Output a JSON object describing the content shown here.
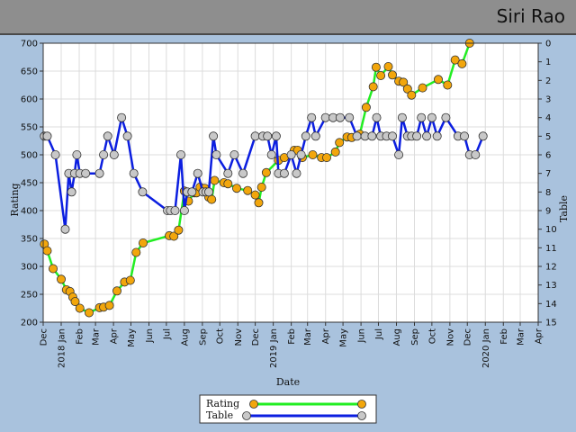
{
  "header": {
    "player_name": "Siri Rao"
  },
  "chart_data": {
    "type": "line",
    "xlabel": "Date",
    "ylabel": "Rating",
    "y2label": "Table",
    "ylim": [
      200,
      700
    ],
    "y2lim": [
      0,
      15
    ],
    "yticks": [
      200,
      250,
      300,
      350,
      400,
      450,
      500,
      550,
      600,
      650,
      700
    ],
    "y2ticks": [
      0,
      1,
      2,
      3,
      4,
      5,
      6,
      7,
      8,
      9,
      10,
      11,
      12,
      13,
      14,
      15
    ],
    "xlim": [
      "2017-12-01",
      "2020-04-01"
    ],
    "xticks": [
      {
        "date": "2017-12-01",
        "label": "Dec"
      },
      {
        "date": "2018-01-01",
        "label": "2018 Jan"
      },
      {
        "date": "2018-02-01",
        "label": "Feb"
      },
      {
        "date": "2018-03-01",
        "label": "Mar"
      },
      {
        "date": "2018-04-01",
        "label": "Apr"
      },
      {
        "date": "2018-05-01",
        "label": "May"
      },
      {
        "date": "2018-06-01",
        "label": "Jun"
      },
      {
        "date": "2018-07-01",
        "label": "Jul"
      },
      {
        "date": "2018-08-01",
        "label": "Aug"
      },
      {
        "date": "2018-09-01",
        "label": "Sep"
      },
      {
        "date": "2018-10-01",
        "label": "Oct"
      },
      {
        "date": "2018-11-01",
        "label": "Nov"
      },
      {
        "date": "2018-12-01",
        "label": "Dec"
      },
      {
        "date": "2019-01-01",
        "label": "2019 Jan"
      },
      {
        "date": "2019-02-01",
        "label": "Feb"
      },
      {
        "date": "2019-03-01",
        "label": "Mar"
      },
      {
        "date": "2019-04-01",
        "label": "Apr"
      },
      {
        "date": "2019-05-01",
        "label": "May"
      },
      {
        "date": "2019-06-01",
        "label": "Jun"
      },
      {
        "date": "2019-07-01",
        "label": "Jul"
      },
      {
        "date": "2019-08-01",
        "label": "Aug"
      },
      {
        "date": "2019-09-01",
        "label": "Sep"
      },
      {
        "date": "2019-10-01",
        "label": "Oct"
      },
      {
        "date": "2019-11-01",
        "label": "Nov"
      },
      {
        "date": "2019-12-01",
        "label": "Dec"
      },
      {
        "date": "2020-01-01",
        "label": "2020 Jan"
      },
      {
        "date": "2020-02-01",
        "label": "Feb"
      },
      {
        "date": "2020-03-01",
        "label": "Mar"
      },
      {
        "date": "2020-04-01",
        "label": "Apr"
      }
    ],
    "grid": true,
    "legend_position": "bottom-center",
    "series": [
      {
        "name": "Rating",
        "axis": "left",
        "line_color": "#22ee22",
        "marker_color": "#f2a60c",
        "points": [
          [
            "2017-12-03",
            340
          ],
          [
            "2017-12-08",
            328
          ],
          [
            "2017-12-18",
            296
          ],
          [
            "2018-01-01",
            277
          ],
          [
            "2018-01-10",
            258
          ],
          [
            "2018-01-16",
            255
          ],
          [
            "2018-01-21",
            245
          ],
          [
            "2018-01-25",
            237
          ],
          [
            "2018-02-02",
            225
          ],
          [
            "2018-02-18",
            217
          ],
          [
            "2018-03-08",
            226
          ],
          [
            "2018-03-15",
            227
          ],
          [
            "2018-03-25",
            230
          ],
          [
            "2018-04-07",
            256
          ],
          [
            "2018-04-20",
            272
          ],
          [
            "2018-04-30",
            275
          ],
          [
            "2018-05-10",
            325
          ],
          [
            "2018-05-22",
            342
          ],
          [
            "2018-07-06",
            355
          ],
          [
            "2018-07-14",
            354
          ],
          [
            "2018-07-22",
            365
          ],
          [
            "2018-08-01",
            435
          ],
          [
            "2018-08-08",
            417
          ],
          [
            "2018-08-18",
            432
          ],
          [
            "2018-08-22",
            432
          ],
          [
            "2018-08-28",
            442
          ],
          [
            "2018-09-05",
            440
          ],
          [
            "2018-09-12",
            424
          ],
          [
            "2018-09-17",
            420
          ],
          [
            "2018-09-22",
            454
          ],
          [
            "2018-10-08",
            450
          ],
          [
            "2018-10-15",
            448
          ],
          [
            "2018-10-30",
            440
          ],
          [
            "2018-11-18",
            436
          ],
          [
            "2018-12-01",
            428
          ],
          [
            "2018-12-07",
            414
          ],
          [
            "2018-12-12",
            442
          ],
          [
            "2018-12-20",
            468
          ],
          [
            "2019-01-10",
            490
          ],
          [
            "2019-01-20",
            495
          ],
          [
            "2019-02-06",
            508
          ],
          [
            "2019-02-12",
            508
          ],
          [
            "2019-02-20",
            495
          ],
          [
            "2019-03-10",
            500
          ],
          [
            "2019-03-25",
            495
          ],
          [
            "2019-04-03",
            495
          ],
          [
            "2019-04-18",
            505
          ],
          [
            "2019-04-25",
            522
          ],
          [
            "2019-05-08",
            532
          ],
          [
            "2019-05-16",
            531
          ],
          [
            "2019-05-30",
            537
          ],
          [
            "2019-06-10",
            585
          ],
          [
            "2019-06-22",
            622
          ],
          [
            "2019-06-27",
            657
          ],
          [
            "2019-07-05",
            642
          ],
          [
            "2019-07-18",
            658
          ],
          [
            "2019-07-25",
            643
          ],
          [
            "2019-08-05",
            632
          ],
          [
            "2019-08-13",
            630
          ],
          [
            "2019-08-20",
            618
          ],
          [
            "2019-08-27",
            607
          ],
          [
            "2019-09-15",
            620
          ],
          [
            "2019-10-12",
            635
          ],
          [
            "2019-10-28",
            625
          ],
          [
            "2019-11-10",
            670
          ],
          [
            "2019-11-22",
            663
          ],
          [
            "2019-12-05",
            700
          ]
        ]
      },
      {
        "name": "Table",
        "axis": "right",
        "line_color": "#0b1ee0",
        "marker_color": "#c8c8c8",
        "points": [
          [
            "2017-12-03",
            5
          ],
          [
            "2017-12-08",
            5
          ],
          [
            "2017-12-22",
            6
          ],
          [
            "2018-01-08",
            10
          ],
          [
            "2018-01-14",
            7
          ],
          [
            "2018-01-19",
            8
          ],
          [
            "2018-01-24",
            7
          ],
          [
            "2018-01-28",
            6
          ],
          [
            "2018-02-02",
            7
          ],
          [
            "2018-02-12",
            7
          ],
          [
            "2018-03-08",
            7
          ],
          [
            "2018-03-15",
            6
          ],
          [
            "2018-03-22",
            5
          ],
          [
            "2018-04-02",
            6
          ],
          [
            "2018-04-15",
            4
          ],
          [
            "2018-04-25",
            5
          ],
          [
            "2018-05-06",
            7
          ],
          [
            "2018-05-21",
            8
          ],
          [
            "2018-07-03",
            9
          ],
          [
            "2018-07-08",
            9
          ],
          [
            "2018-07-16",
            9
          ],
          [
            "2018-07-26",
            6
          ],
          [
            "2018-08-01",
            9
          ],
          [
            "2018-08-06",
            8
          ],
          [
            "2018-08-14",
            8
          ],
          [
            "2018-08-24",
            7
          ],
          [
            "2018-09-02",
            8
          ],
          [
            "2018-09-07",
            8
          ],
          [
            "2018-09-12",
            8
          ],
          [
            "2018-09-20",
            5
          ],
          [
            "2018-09-25",
            6
          ],
          [
            "2018-10-15",
            7
          ],
          [
            "2018-10-26",
            6
          ],
          [
            "2018-11-10",
            7
          ],
          [
            "2018-12-01",
            5
          ],
          [
            "2018-12-14",
            5
          ],
          [
            "2018-12-22",
            5
          ],
          [
            "2018-12-29",
            6
          ],
          [
            "2019-01-06",
            5
          ],
          [
            "2019-01-10",
            7
          ],
          [
            "2019-01-20",
            7
          ],
          [
            "2019-02-01",
            6
          ],
          [
            "2019-02-10",
            7
          ],
          [
            "2019-02-18",
            6
          ],
          [
            "2019-02-26",
            5
          ],
          [
            "2019-03-08",
            4
          ],
          [
            "2019-03-15",
            5
          ],
          [
            "2019-04-01",
            4
          ],
          [
            "2019-04-14",
            4
          ],
          [
            "2019-04-26",
            4
          ],
          [
            "2019-05-12",
            4
          ],
          [
            "2019-05-25",
            5
          ],
          [
            "2019-06-08",
            5
          ],
          [
            "2019-06-20",
            5
          ],
          [
            "2019-06-28",
            4
          ],
          [
            "2019-07-05",
            5
          ],
          [
            "2019-07-15",
            5
          ],
          [
            "2019-07-25",
            5
          ],
          [
            "2019-08-05",
            6
          ],
          [
            "2019-08-11",
            4
          ],
          [
            "2019-08-20",
            5
          ],
          [
            "2019-08-27",
            5
          ],
          [
            "2019-09-05",
            5
          ],
          [
            "2019-09-13",
            4
          ],
          [
            "2019-09-22",
            5
          ],
          [
            "2019-10-01",
            4
          ],
          [
            "2019-10-10",
            5
          ],
          [
            "2019-10-25",
            4
          ],
          [
            "2019-11-15",
            5
          ],
          [
            "2019-11-26",
            5
          ],
          [
            "2019-12-05",
            6
          ],
          [
            "2019-12-15",
            6
          ],
          [
            "2019-12-28",
            5
          ]
        ]
      }
    ]
  }
}
